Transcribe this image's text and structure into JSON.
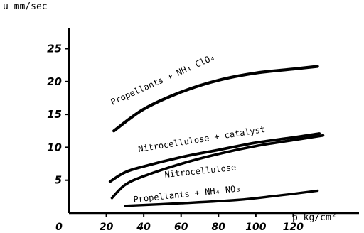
{
  "chart_data": {
    "type": "line",
    "title": "",
    "xlabel": "p kg/cm²",
    "ylabel": "u mm/sec",
    "xlim": [
      0,
      140
    ],
    "ylim": [
      0,
      27
    ],
    "x_ticks": [
      "0",
      "20",
      "40",
      "60",
      "80",
      "100",
      "120"
    ],
    "y_ticks": [
      "5",
      "10",
      "15",
      "20",
      "25"
    ],
    "grid": false,
    "legend": "none",
    "series": [
      {
        "name": "Propellants + NH₄ ClO₄",
        "x": [
          24,
          40,
          60,
          80,
          100,
          120,
          133
        ],
        "y": [
          12.5,
          15.8,
          18.4,
          20.2,
          21.3,
          21.9,
          22.3
        ]
      },
      {
        "name": "Nitrocellulose + catalyst",
        "x": [
          22,
          30,
          40,
          60,
          80,
          100,
          120,
          134
        ],
        "y": [
          4.8,
          6.2,
          7.1,
          8.5,
          9.6,
          10.7,
          11.5,
          12.1
        ]
      },
      {
        "name": "Nitrocellulose",
        "x": [
          23,
          30,
          40,
          60,
          80,
          100,
          120,
          136
        ],
        "y": [
          2.3,
          4.3,
          5.6,
          7.5,
          9.0,
          10.2,
          11.1,
          11.8
        ]
      },
      {
        "name": "Propellants + NH₄ NO₃",
        "x": [
          30,
          60,
          90,
          110,
          133
        ],
        "y": [
          1.1,
          1.5,
          2.0,
          2.6,
          3.4
        ]
      }
    ]
  }
}
